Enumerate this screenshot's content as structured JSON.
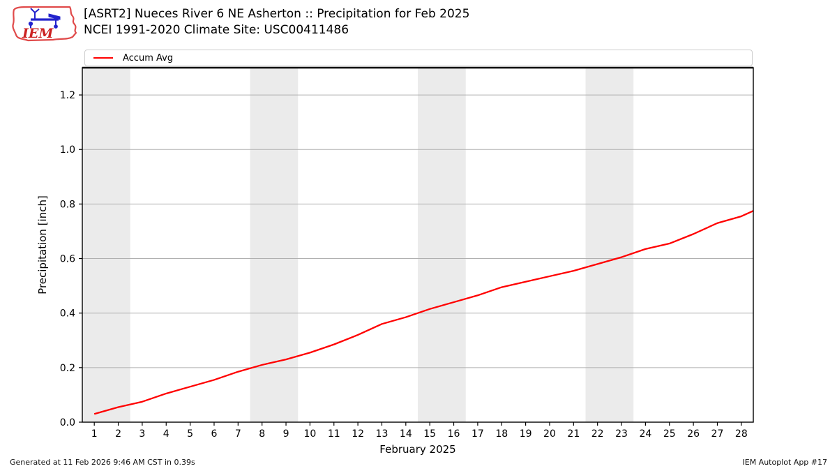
{
  "header": {
    "title_line1": "[ASRT2] Nueces River 6 NE Asherton :: Precipitation for Feb 2025",
    "title_line2": "NCEI 1991-2020 Climate Site: USC00411486",
    "logo_text": "IEM"
  },
  "legend": {
    "items": [
      {
        "label": "Accum Avg",
        "color": "#ff0000"
      }
    ]
  },
  "footer": {
    "generated": "Generated at 11 Feb 2026 9:46 AM CST in 0.39s",
    "app": "IEM Autoplot App #17"
  },
  "chart_data": {
    "type": "line",
    "title": "[ASRT2] Nueces River 6 NE Asherton :: Precipitation for Feb 2025",
    "subtitle": "NCEI 1991-2020 Climate Site: USC00411486",
    "xlabel": "February 2025",
    "ylabel": "Precipitation [inch]",
    "xlim": [
      0.5,
      28.5
    ],
    "ylim": [
      0,
      1.3
    ],
    "xticks": [
      1,
      2,
      3,
      4,
      5,
      6,
      7,
      8,
      9,
      10,
      11,
      12,
      13,
      14,
      15,
      16,
      17,
      18,
      19,
      20,
      21,
      22,
      23,
      24,
      25,
      26,
      27,
      28
    ],
    "ytick_labels": [
      "0.0",
      "0.2",
      "0.4",
      "0.6",
      "0.8",
      "1.0",
      "1.2"
    ],
    "ytick_values": [
      0.0,
      0.2,
      0.4,
      0.6,
      0.8,
      1.0,
      1.2
    ],
    "grid": "horizontal",
    "gridline_color": "#b0b0b0",
    "weekend_band_color": "#ebebeb",
    "weekend_bands": [
      [
        0.5,
        2.5
      ],
      [
        7.5,
        9.5
      ],
      [
        14.5,
        16.5
      ],
      [
        21.5,
        23.5
      ]
    ],
    "legend_position": "top",
    "series": [
      {
        "name": "Accum Avg",
        "color": "#ff0000",
        "x": [
          1,
          2,
          3,
          4,
          5,
          6,
          7,
          8,
          9,
          10,
          11,
          12,
          13,
          14,
          15,
          16,
          17,
          18,
          19,
          20,
          21,
          22,
          23,
          24,
          25,
          26,
          27,
          28,
          28.5
        ],
        "y": [
          0.03,
          0.055,
          0.075,
          0.105,
          0.13,
          0.155,
          0.185,
          0.21,
          0.23,
          0.255,
          0.285,
          0.32,
          0.36,
          0.385,
          0.415,
          0.44,
          0.465,
          0.495,
          0.515,
          0.535,
          0.555,
          0.58,
          0.605,
          0.635,
          0.655,
          0.69,
          0.73,
          0.755,
          0.775
        ]
      }
    ]
  }
}
